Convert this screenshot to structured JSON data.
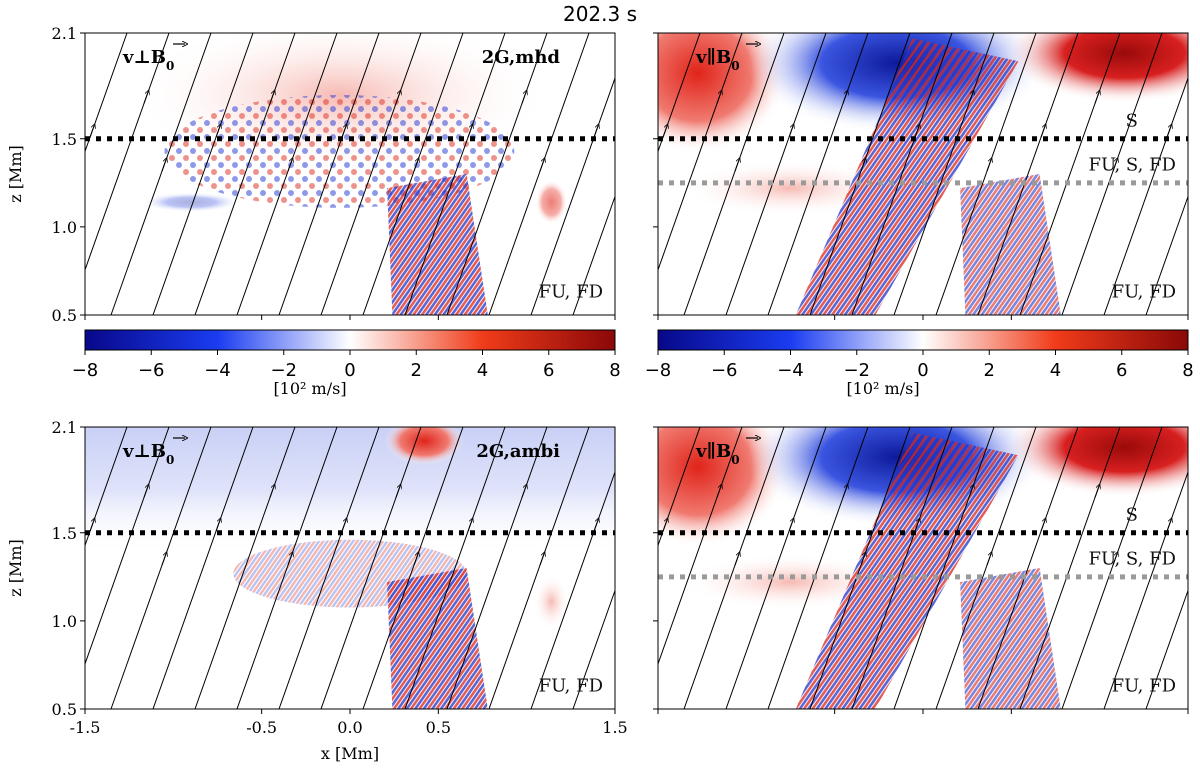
{
  "title": "202.3 s",
  "colorbar": {
    "ticks": [
      "-8",
      "-6",
      "-4",
      "-2",
      "0",
      "2",
      "4",
      "6",
      "8"
    ],
    "label": "[10² m/s]",
    "range": [
      -8,
      8
    ],
    "colormap": [
      "#08088a",
      "#1a3cf0",
      "#ffffff",
      "#f03c1a",
      "#8a0808"
    ]
  },
  "axes": {
    "ylabel": "z [Mm]",
    "xlabel": "x [Mm]",
    "yticks": [
      "2.1",
      "1.5",
      "1.0",
      "0.5"
    ],
    "xticks": [
      "-1.5",
      "-0.5",
      "0.0",
      "0.5",
      "1.5"
    ],
    "xlim": [
      -1.5,
      1.5
    ],
    "ylim": [
      0.5,
      2.1
    ]
  },
  "panels": [
    {
      "id": "top-left",
      "quantity": "v⊥B0",
      "tag": "2G,mhd",
      "annotations": [
        {
          "text": "FU, FD"
        }
      ],
      "dotted_lines_z": [
        1.5
      ]
    },
    {
      "id": "top-right",
      "quantity": "v∥B0",
      "tag": "",
      "annotations": [
        {
          "text": "S"
        },
        {
          "text": "FU, S, FD"
        },
        {
          "text": "FU, FD"
        }
      ],
      "dotted_lines_z": [
        1.5,
        1.25
      ]
    },
    {
      "id": "bottom-left",
      "quantity": "v⊥B0",
      "tag": "2G,ambi",
      "annotations": [
        {
          "text": "FU, FD"
        }
      ],
      "dotted_lines_z": [
        1.5
      ]
    },
    {
      "id": "bottom-right",
      "quantity": "v∥B0",
      "tag": "",
      "annotations": [
        {
          "text": "S"
        },
        {
          "text": "FU, S, FD"
        },
        {
          "text": "FU, FD"
        }
      ],
      "dotted_lines_z": [
        1.5,
        1.25
      ]
    }
  ],
  "chart_data": {
    "type": "heatmap",
    "title": "202.3 s",
    "xlabel": "x [Mm]",
    "ylabel": "z [Mm]",
    "xlim": [
      -1.5,
      1.5
    ],
    "ylim": [
      0.5,
      2.1
    ],
    "colorbar_range": [
      -8,
      8
    ],
    "colorbar_units": "[10² m/s]",
    "panel_labels": [
      "v⊥B0 2G,mhd",
      "v∥B0",
      "v⊥B0 2G,ambi",
      "v∥B0"
    ],
    "reference_heights_z": [
      1.5,
      1.25
    ]
  }
}
